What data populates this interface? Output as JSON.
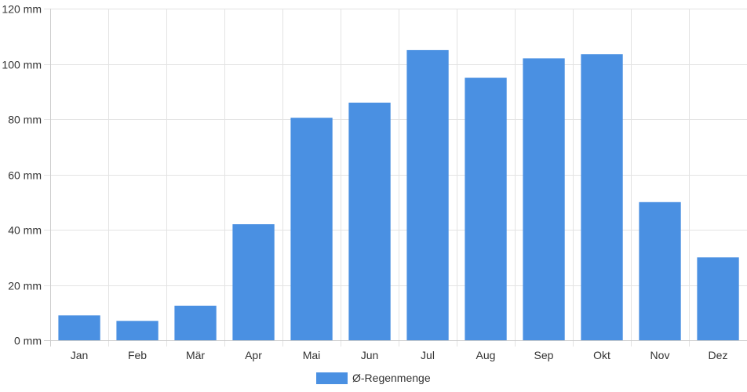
{
  "chart_data": {
    "type": "bar",
    "categories": [
      "Jan",
      "Feb",
      "Mär",
      "Apr",
      "Mai",
      "Jun",
      "Jul",
      "Aug",
      "Sep",
      "Okt",
      "Nov",
      "Dez"
    ],
    "series": [
      {
        "name": "Ø-Regenmenge",
        "values": [
          9,
          7,
          12.5,
          42,
          80.5,
          86,
          105,
          95,
          102,
          103.5,
          50,
          30
        ],
        "color": "#4a90e2"
      }
    ],
    "yticks": [
      "0 mm",
      "20 mm",
      "40 mm",
      "60 mm",
      "80 mm",
      "100 mm",
      "120 mm"
    ],
    "ytick_values": [
      0,
      20,
      40,
      60,
      80,
      100,
      120
    ],
    "ylim": [
      0,
      120
    ],
    "title": "",
    "xlabel": "",
    "ylabel": "",
    "grid": true,
    "legend": {
      "position": "bottom-center"
    }
  }
}
